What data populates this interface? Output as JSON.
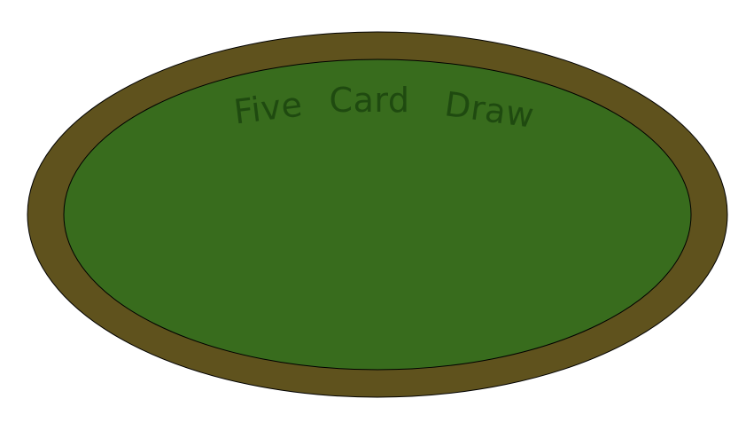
{
  "table": {
    "title_words": [
      "Five",
      "Card",
      "Draw"
    ],
    "colors": {
      "rail": "#5f521d",
      "felt": "#386c1d",
      "outline": "#000000",
      "title_text": "#1f4a10",
      "background": "#ffffff"
    }
  }
}
